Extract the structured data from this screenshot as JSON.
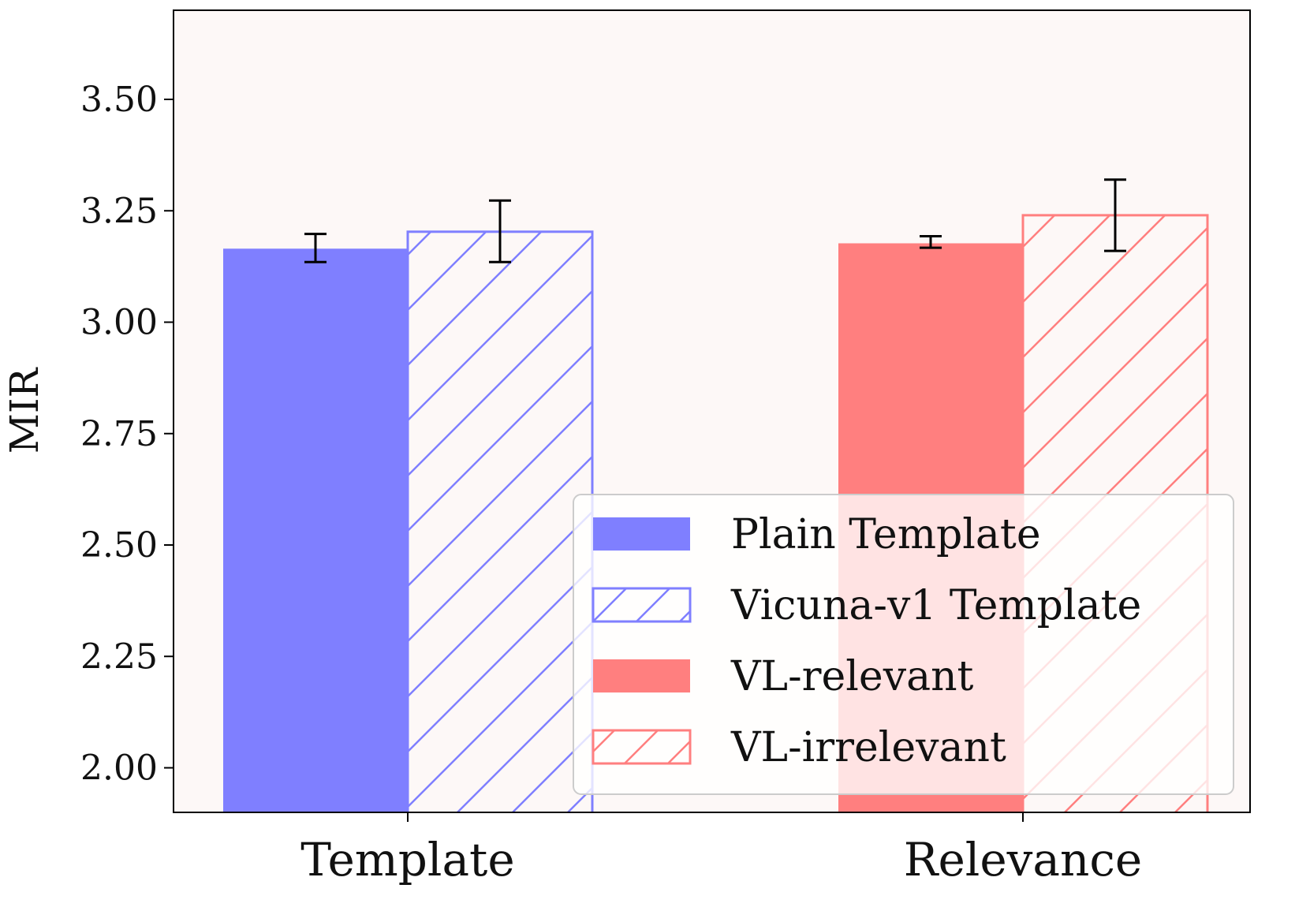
{
  "chart_data": {
    "type": "bar",
    "title": "",
    "xlabel": "",
    "ylabel": "MIR",
    "ylim": [
      1.9,
      3.7
    ],
    "yticks": [
      "2.00",
      "2.25",
      "2.50",
      "2.75",
      "3.00",
      "3.25",
      "3.50"
    ],
    "grid": false,
    "background": "#fdf8f7",
    "legend_position": "lower-right",
    "groups": [
      {
        "label": "Template",
        "bars": [
          {
            "name": "Plain Template",
            "value": 3.165,
            "err_low": 3.135,
            "err_high": 3.198,
            "color": "#7f7fff",
            "hatch": false
          },
          {
            "name": "Vicuna-v1 Template",
            "value": 3.203,
            "err_low": 3.135,
            "err_high": 3.273,
            "color": "#7f7fff",
            "hatch": true
          }
        ]
      },
      {
        "label": "Relevance",
        "bars": [
          {
            "name": "VL-relevant",
            "value": 3.177,
            "err_low": 3.167,
            "err_high": 3.193,
            "color": "#ff7f7f",
            "hatch": false
          },
          {
            "name": "VL-irrelevant",
            "value": 3.24,
            "err_low": 3.16,
            "err_high": 3.32,
            "color": "#ff7f7f",
            "hatch": true
          }
        ]
      }
    ],
    "legend": [
      {
        "label": "Plain Template",
        "color": "#7f7fff",
        "hatch": false
      },
      {
        "label": "Vicuna-v1 Template",
        "color": "#7f7fff",
        "hatch": true
      },
      {
        "label": "VL-relevant",
        "color": "#ff7f7f",
        "hatch": false
      },
      {
        "label": "VL-irrelevant",
        "color": "#ff7f7f",
        "hatch": true
      }
    ]
  }
}
